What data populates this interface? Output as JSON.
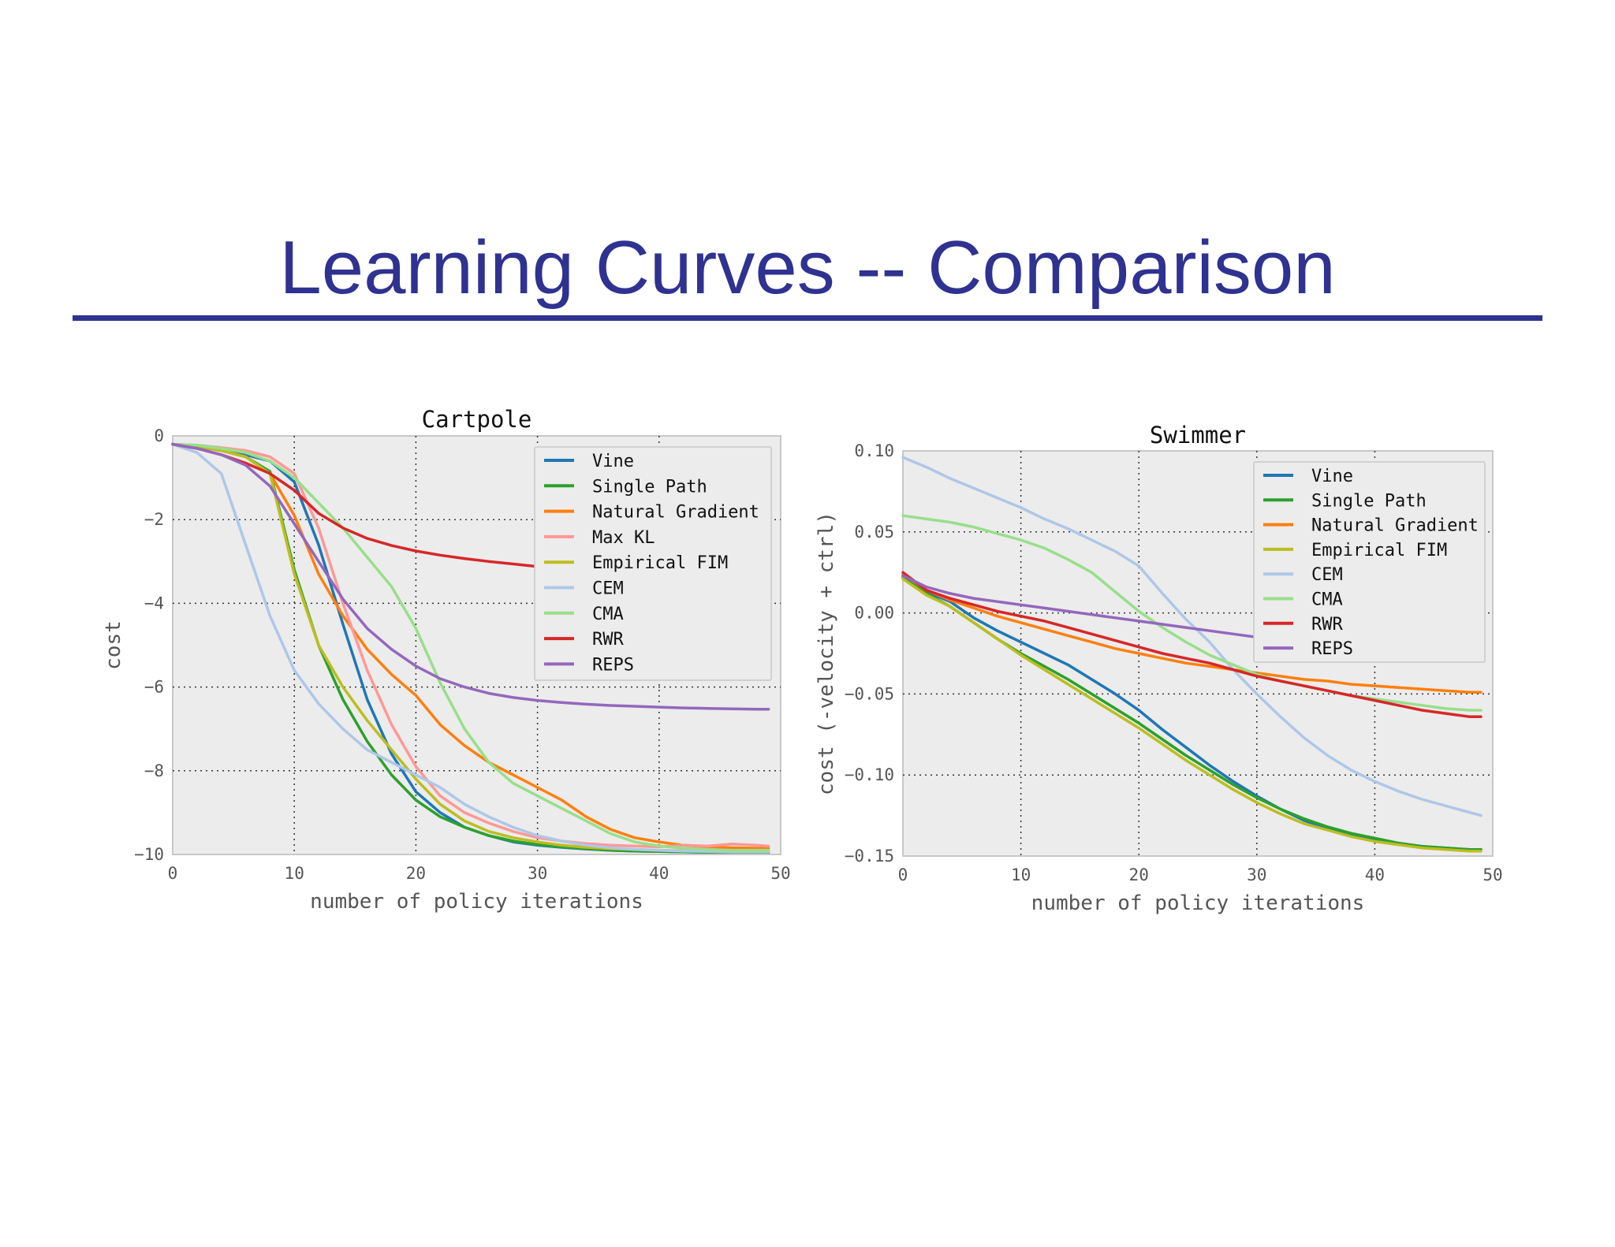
{
  "slide": {
    "title": "Learning Curves -- Comparison",
    "accent_color": "#2f3290"
  },
  "chart_data": [
    {
      "type": "line",
      "title": "Cartpole",
      "xlabel": "number of policy iterations",
      "ylabel": "cost",
      "xlim": [
        0,
        50
      ],
      "ylim": [
        -10,
        0
      ],
      "xticks": [
        0,
        10,
        20,
        30,
        40,
        50
      ],
      "yticks": [
        0,
        -2,
        -4,
        -6,
        -8,
        -10
      ],
      "xtick_labels": [
        "0",
        "10",
        "20",
        "30",
        "40",
        "50"
      ],
      "ytick_labels": [
        "0",
        "−2",
        "−4",
        "−6",
        "−8",
        "−10"
      ],
      "grid": true,
      "legend_position": "top-right",
      "x": [
        0,
        2,
        4,
        6,
        8,
        10,
        12,
        14,
        16,
        18,
        20,
        22,
        24,
        26,
        28,
        30,
        32,
        34,
        36,
        38,
        40,
        42,
        44,
        46,
        48,
        49
      ],
      "series": [
        {
          "name": "Vine",
          "color": "#1f77b4",
          "values": [
            -0.2,
            -0.25,
            -0.35,
            -0.45,
            -0.6,
            -1.1,
            -2.6,
            -4.5,
            -6.3,
            -7.6,
            -8.5,
            -9.0,
            -9.35,
            -9.55,
            -9.7,
            -9.78,
            -9.83,
            -9.87,
            -9.9,
            -9.92,
            -9.93,
            -9.94,
            -9.95,
            -9.95,
            -9.95,
            -9.95
          ]
        },
        {
          "name": "Single Path",
          "color": "#2ca02c",
          "values": [
            -0.2,
            -0.25,
            -0.35,
            -0.5,
            -0.85,
            -3.2,
            -5.0,
            -6.3,
            -7.3,
            -8.1,
            -8.7,
            -9.1,
            -9.35,
            -9.55,
            -9.68,
            -9.76,
            -9.82,
            -9.86,
            -9.9,
            -9.92,
            -9.93,
            -9.94,
            -9.95,
            -9.95,
            -9.95,
            -9.95
          ]
        },
        {
          "name": "Natural Gradient",
          "color": "#ff7f0e",
          "values": [
            -0.2,
            -0.25,
            -0.35,
            -0.5,
            -0.9,
            -1.9,
            -3.3,
            -4.3,
            -5.1,
            -5.7,
            -6.2,
            -6.9,
            -7.4,
            -7.8,
            -8.1,
            -8.4,
            -8.7,
            -9.1,
            -9.4,
            -9.6,
            -9.7,
            -9.78,
            -9.82,
            -9.84,
            -9.85,
            -9.85
          ]
        },
        {
          "name": "Max KL",
          "color": "#ff9896",
          "values": [
            -0.2,
            -0.22,
            -0.28,
            -0.35,
            -0.5,
            -0.9,
            -2.2,
            -4.0,
            -5.6,
            -6.9,
            -7.9,
            -8.6,
            -9.0,
            -9.25,
            -9.45,
            -9.6,
            -9.68,
            -9.74,
            -9.78,
            -9.8,
            -9.82,
            -9.78,
            -9.8,
            -9.75,
            -9.78,
            -9.8
          ]
        },
        {
          "name": "Empirical FIM",
          "color": "#bcbd22",
          "values": [
            -0.2,
            -0.25,
            -0.35,
            -0.5,
            -0.9,
            -3.3,
            -5.0,
            -6.0,
            -6.8,
            -7.5,
            -8.2,
            -8.8,
            -9.2,
            -9.45,
            -9.6,
            -9.7,
            -9.78,
            -9.83,
            -9.86,
            -9.88,
            -9.9,
            -9.91,
            -9.92,
            -9.92,
            -9.92,
            -9.92
          ]
        },
        {
          "name": "CEM",
          "color": "#aec7e8",
          "values": [
            -0.2,
            -0.4,
            -0.9,
            -2.6,
            -4.3,
            -5.6,
            -6.4,
            -7.0,
            -7.5,
            -7.8,
            -8.1,
            -8.4,
            -8.8,
            -9.1,
            -9.35,
            -9.55,
            -9.68,
            -9.78,
            -9.84,
            -9.88,
            -9.9,
            -9.92,
            -9.93,
            -9.94,
            -9.94,
            -9.94
          ]
        },
        {
          "name": "CMA",
          "color": "#98df8a",
          "values": [
            -0.2,
            -0.22,
            -0.3,
            -0.4,
            -0.6,
            -1.0,
            -1.6,
            -2.2,
            -2.9,
            -3.6,
            -4.6,
            -5.9,
            -7.0,
            -7.8,
            -8.3,
            -8.6,
            -8.9,
            -9.2,
            -9.5,
            -9.7,
            -9.8,
            -9.85,
            -9.88,
            -9.9,
            -9.9,
            -9.9
          ]
        },
        {
          "name": "RWR",
          "color": "#d62728",
          "values": [
            -0.2,
            -0.3,
            -0.45,
            -0.65,
            -0.9,
            -1.3,
            -1.85,
            -2.2,
            -2.45,
            -2.62,
            -2.75,
            -2.85,
            -2.93,
            -3.0,
            -3.06,
            -3.12,
            -3.16,
            -3.2,
            -3.23,
            -3.26,
            -3.28,
            -3.3,
            -3.31,
            -3.32,
            -3.33,
            -3.33
          ]
        },
        {
          "name": "REPS",
          "color": "#9467bd",
          "values": [
            -0.2,
            -0.3,
            -0.45,
            -0.7,
            -1.2,
            -2.1,
            -3.0,
            -3.9,
            -4.6,
            -5.1,
            -5.5,
            -5.8,
            -6.0,
            -6.15,
            -6.25,
            -6.32,
            -6.37,
            -6.41,
            -6.44,
            -6.46,
            -6.48,
            -6.5,
            -6.51,
            -6.52,
            -6.53,
            -6.53
          ]
        }
      ]
    },
    {
      "type": "line",
      "title": "Swimmer",
      "xlabel": "number of policy iterations",
      "ylabel": "cost (-velocity + ctrl)",
      "xlim": [
        0,
        50
      ],
      "ylim": [
        -0.15,
        0.1
      ],
      "xticks": [
        0,
        10,
        20,
        30,
        40,
        50
      ],
      "yticks": [
        0.1,
        0.05,
        0.0,
        -0.05,
        -0.1,
        -0.15
      ],
      "xtick_labels": [
        "0",
        "10",
        "20",
        "30",
        "40",
        "50"
      ],
      "ytick_labels": [
        "0.10",
        "0.05",
        "0.00",
        "−0.05",
        "−0.10",
        "−0.15"
      ],
      "grid": true,
      "legend_position": "top-right",
      "x": [
        0,
        2,
        4,
        6,
        8,
        10,
        12,
        14,
        16,
        18,
        20,
        22,
        24,
        26,
        28,
        30,
        32,
        34,
        36,
        38,
        40,
        42,
        44,
        46,
        48,
        49
      ],
      "series": [
        {
          "name": "Vine",
          "color": "#1f77b4",
          "values": [
            0.023,
            0.013,
            0.007,
            -0.003,
            -0.011,
            -0.018,
            -0.025,
            -0.032,
            -0.041,
            -0.05,
            -0.06,
            -0.072,
            -0.083,
            -0.094,
            -0.104,
            -0.113,
            -0.121,
            -0.128,
            -0.133,
            -0.137,
            -0.14,
            -0.142,
            -0.144,
            -0.145,
            -0.146,
            -0.146
          ]
        },
        {
          "name": "Single Path",
          "color": "#2ca02c",
          "values": [
            0.022,
            0.012,
            0.004,
            -0.006,
            -0.016,
            -0.025,
            -0.033,
            -0.041,
            -0.05,
            -0.059,
            -0.068,
            -0.078,
            -0.088,
            -0.097,
            -0.106,
            -0.114,
            -0.121,
            -0.127,
            -0.132,
            -0.136,
            -0.139,
            -0.142,
            -0.144,
            -0.145,
            -0.146,
            -0.146
          ]
        },
        {
          "name": "Natural Gradient",
          "color": "#ff7f0e",
          "values": [
            0.024,
            0.014,
            0.008,
            0.003,
            -0.002,
            -0.006,
            -0.01,
            -0.014,
            -0.018,
            -0.022,
            -0.025,
            -0.028,
            -0.031,
            -0.033,
            -0.035,
            -0.037,
            -0.039,
            -0.041,
            -0.042,
            -0.044,
            -0.045,
            -0.046,
            -0.047,
            -0.048,
            -0.049,
            -0.049
          ]
        },
        {
          "name": "Empirical FIM",
          "color": "#bcbd22",
          "values": [
            0.021,
            0.011,
            0.004,
            -0.006,
            -0.016,
            -0.026,
            -0.035,
            -0.044,
            -0.053,
            -0.062,
            -0.071,
            -0.081,
            -0.091,
            -0.1,
            -0.109,
            -0.117,
            -0.124,
            -0.13,
            -0.134,
            -0.138,
            -0.141,
            -0.143,
            -0.145,
            -0.146,
            -0.147,
            -0.147
          ]
        },
        {
          "name": "CEM",
          "color": "#aec7e8",
          "values": [
            0.096,
            0.09,
            0.083,
            0.077,
            0.071,
            0.065,
            0.058,
            0.052,
            0.045,
            0.038,
            0.029,
            0.012,
            -0.004,
            -0.018,
            -0.035,
            -0.05,
            -0.064,
            -0.077,
            -0.088,
            -0.097,
            -0.104,
            -0.11,
            -0.115,
            -0.119,
            -0.123,
            -0.125
          ]
        },
        {
          "name": "CMA",
          "color": "#98df8a",
          "values": [
            0.06,
            0.058,
            0.056,
            0.053,
            0.049,
            0.045,
            0.04,
            0.033,
            0.025,
            0.013,
            0.001,
            -0.009,
            -0.018,
            -0.026,
            -0.032,
            -0.038,
            -0.042,
            -0.045,
            -0.048,
            -0.051,
            -0.053,
            -0.055,
            -0.057,
            -0.059,
            -0.06,
            -0.06
          ]
        },
        {
          "name": "RWR",
          "color": "#d62728",
          "values": [
            0.025,
            0.014,
            0.009,
            0.005,
            0.001,
            -0.002,
            -0.005,
            -0.009,
            -0.013,
            -0.017,
            -0.021,
            -0.025,
            -0.028,
            -0.031,
            -0.035,
            -0.039,
            -0.042,
            -0.045,
            -0.048,
            -0.051,
            -0.054,
            -0.057,
            -0.06,
            -0.062,
            -0.064,
            -0.064
          ]
        },
        {
          "name": "REPS",
          "color": "#9467bd",
          "values": [
            0.023,
            0.016,
            0.012,
            0.009,
            0.007,
            0.005,
            0.003,
            0.001,
            -0.001,
            -0.003,
            -0.005,
            -0.007,
            -0.009,
            -0.011,
            -0.013,
            -0.015,
            -0.017,
            -0.018,
            -0.019,
            -0.021,
            -0.022,
            -0.023,
            -0.024,
            -0.025,
            -0.026,
            -0.026
          ]
        }
      ]
    }
  ]
}
